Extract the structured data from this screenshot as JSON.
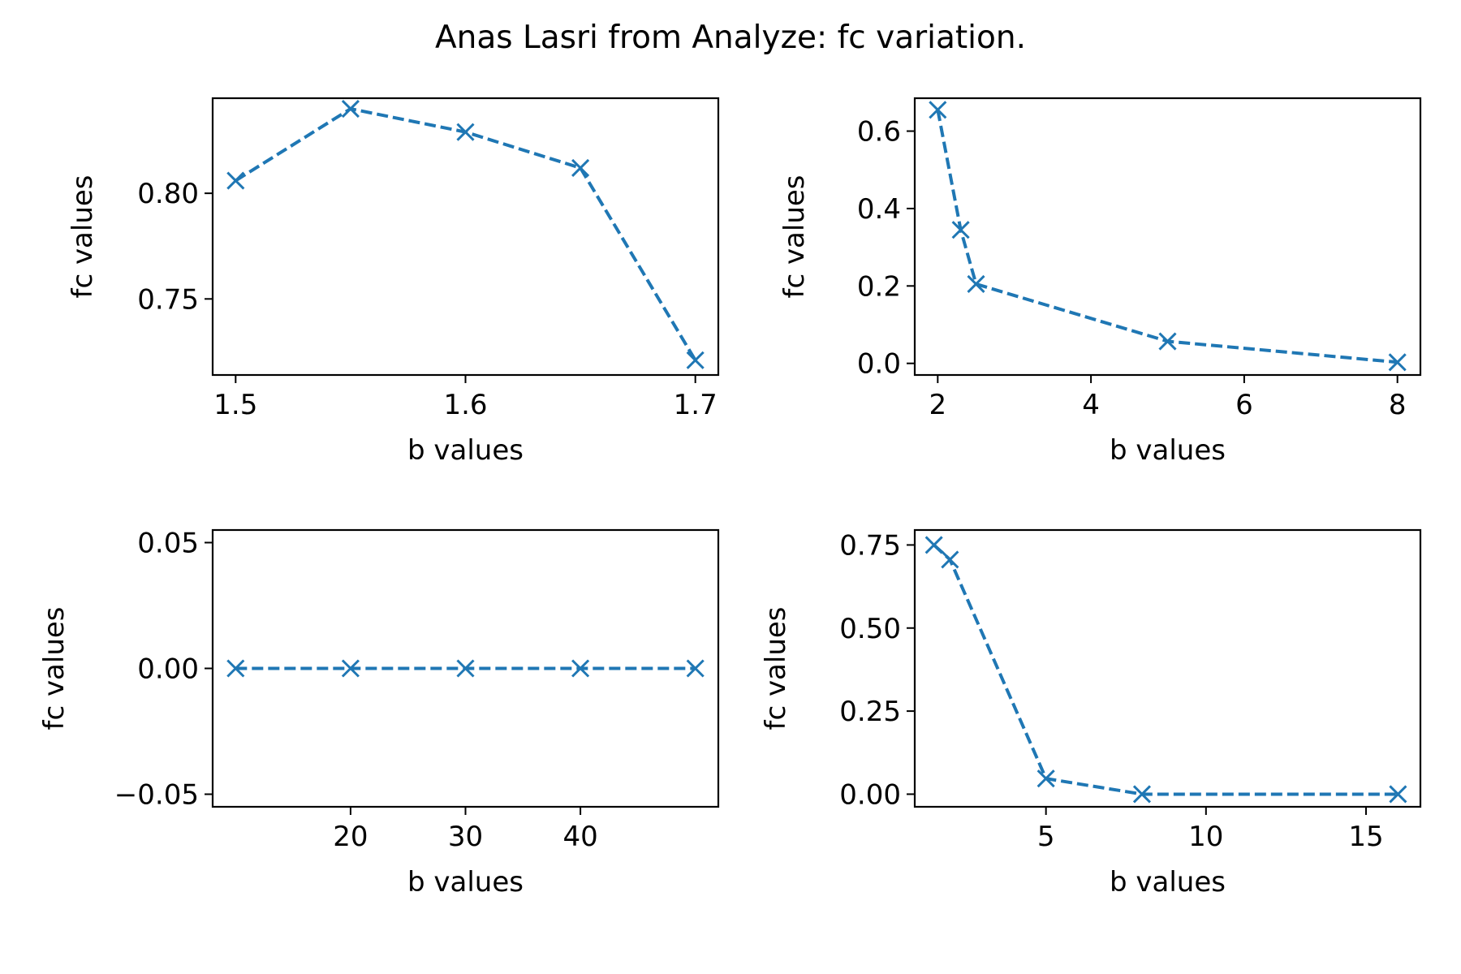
{
  "figure": {
    "title": "Anas Lasri from Analyze: fc variation.",
    "colors": {
      "series": "#1f77b4",
      "axes": "#000000",
      "background": "#ffffff"
    }
  },
  "chart_data": [
    {
      "type": "line",
      "position": "top-left",
      "marker": "x",
      "line_style": "dashed",
      "xlabel": "b values",
      "ylabel": "fc values",
      "xlim": [
        1.49,
        1.71
      ],
      "ylim": [
        0.714,
        0.845
      ],
      "xticks": [
        1.5,
        1.6,
        1.7
      ],
      "xtick_labels": [
        "1.5",
        "1.6",
        "1.7"
      ],
      "yticks": [
        0.75,
        0.8
      ],
      "ytick_labels": [
        "0.75",
        "0.80"
      ],
      "series": [
        {
          "x": [
            1.5,
            1.55,
            1.6,
            1.65,
            1.7
          ],
          "y": [
            0.806,
            0.84,
            0.829,
            0.812,
            0.721
          ]
        }
      ]
    },
    {
      "type": "line",
      "position": "top-right",
      "marker": "x",
      "line_style": "dashed",
      "xlabel": "b values",
      "ylabel": "fc values",
      "xlim": [
        1.7,
        8.3
      ],
      "ylim": [
        -0.03,
        0.685
      ],
      "xticks": [
        2,
        4,
        6,
        8
      ],
      "xtick_labels": [
        "2",
        "4",
        "6",
        "8"
      ],
      "yticks": [
        0.0,
        0.2,
        0.4,
        0.6
      ],
      "ytick_labels": [
        "0.0",
        "0.2",
        "0.4",
        "0.6"
      ],
      "series": [
        {
          "x": [
            2,
            2.3,
            2.5,
            5,
            8
          ],
          "y": [
            0.655,
            0.345,
            0.205,
            0.057,
            0.003
          ]
        }
      ]
    },
    {
      "type": "line",
      "position": "bottom-left",
      "marker": "x",
      "line_style": "dashed",
      "xlabel": "b values",
      "ylabel": "fc values",
      "xlim": [
        8,
        52
      ],
      "ylim": [
        -0.055,
        0.055
      ],
      "xticks": [
        20,
        30,
        40
      ],
      "xtick_labels": [
        "20",
        "30",
        "40"
      ],
      "yticks": [
        -0.05,
        0.0,
        0.05
      ],
      "ytick_labels": [
        "−0.05",
        "0.00",
        "0.05"
      ],
      "series": [
        {
          "x": [
            10,
            20,
            30,
            40,
            50
          ],
          "y": [
            0,
            0,
            0,
            0,
            0
          ]
        }
      ]
    },
    {
      "type": "line",
      "position": "bottom-right",
      "marker": "x",
      "line_style": "dashed",
      "xlabel": "b values",
      "ylabel": "fc values",
      "xlim": [
        0.9,
        16.7
      ],
      "ylim": [
        -0.038,
        0.795
      ],
      "xticks": [
        5,
        10,
        15
      ],
      "xtick_labels": [
        "5",
        "10",
        "15"
      ],
      "yticks": [
        0.0,
        0.25,
        0.5,
        0.75
      ],
      "ytick_labels": [
        "0.00",
        "0.25",
        "0.50",
        "0.75"
      ],
      "series": [
        {
          "x": [
            1.5,
            2,
            5,
            8,
            16
          ],
          "y": [
            0.75,
            0.706,
            0.047,
            0.0,
            0.0
          ]
        }
      ]
    }
  ]
}
